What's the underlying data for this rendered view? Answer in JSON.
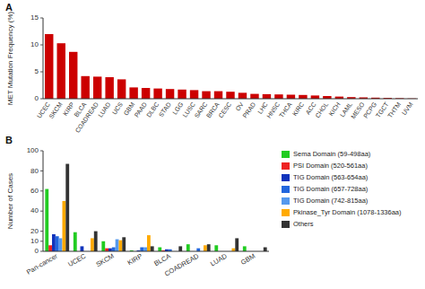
{
  "chart_data": [
    {
      "type": "bar",
      "title": "A",
      "y_label": "MET Mutation Frequency (%)",
      "categories": [
        "UCEC",
        "SKCM",
        "KIRP",
        "BLCA",
        "COADREAD",
        "LUAD",
        "UCS",
        "GBM",
        "PAAD",
        "DLBC",
        "STAD",
        "LGG",
        "LUSC",
        "SARC",
        "BRCA",
        "CESC",
        "OV",
        "PRAD",
        "LHC",
        "HNSC",
        "THCA",
        "KIRC",
        "ACC",
        "CHOL",
        "KICH",
        "LAML",
        "MESO",
        "PCPG",
        "TGCT",
        "THTM",
        "UVM"
      ],
      "values": [
        12.0,
        10.3,
        8.7,
        4.2,
        4.1,
        4.0,
        3.6,
        2.1,
        2.0,
        1.9,
        1.8,
        1.7,
        1.6,
        1.4,
        1.4,
        1.3,
        1.1,
        0.9,
        0.85,
        0.8,
        0.75,
        0.7,
        0.6,
        0.5,
        0.4,
        0.3,
        0.25,
        0.2,
        0.15,
        0.1,
        0.05
      ],
      "color": "#CC0000",
      "ylim": [
        0,
        15
      ],
      "yticks": [
        0,
        5,
        10,
        15
      ]
    },
    {
      "type": "bar",
      "title": "B",
      "y_label": "Number of Cases",
      "categories": [
        "Pan-cancer",
        "UCEC",
        "SKCM",
        "KIRP",
        "BLCA",
        "COADREAD",
        "LUAD",
        "GBM"
      ],
      "series": [
        {
          "name": "Sema Domain (59-498aa)",
          "color": "#22CC22",
          "values": [
            62,
            19,
            10,
            1,
            4,
            7,
            6,
            5
          ]
        },
        {
          "name": "PSI Domain (520-561aa)",
          "color": "#EE2222",
          "values": [
            6,
            0,
            3,
            0,
            1,
            0,
            0,
            0
          ]
        },
        {
          "name": "TIG Domain (563-654aa)",
          "color": "#1133BB",
          "values": [
            17,
            5,
            3,
            1,
            2,
            0,
            0,
            0
          ]
        },
        {
          "name": "TIG Domain (657-728aa)",
          "color": "#2266DD",
          "values": [
            15,
            0,
            4,
            4,
            2,
            3,
            0,
            0
          ]
        },
        {
          "name": "TIG Domain (742-815aa)",
          "color": "#5599EE",
          "values": [
            13,
            0,
            12,
            4,
            0,
            0,
            0,
            0
          ]
        },
        {
          "name": "Pkinase_Tyr Domain (1078-1336aa)",
          "color": "#FFAA00",
          "values": [
            50,
            13,
            11,
            16,
            0,
            6,
            3,
            0
          ]
        },
        {
          "name": "Others",
          "color": "#333333",
          "values": [
            87,
            20,
            14,
            5,
            5,
            7,
            13,
            4
          ]
        }
      ],
      "ylim": [
        0,
        100
      ],
      "yticks": [
        0,
        10,
        20,
        40,
        60,
        80,
        100
      ],
      "legend": "right"
    }
  ]
}
